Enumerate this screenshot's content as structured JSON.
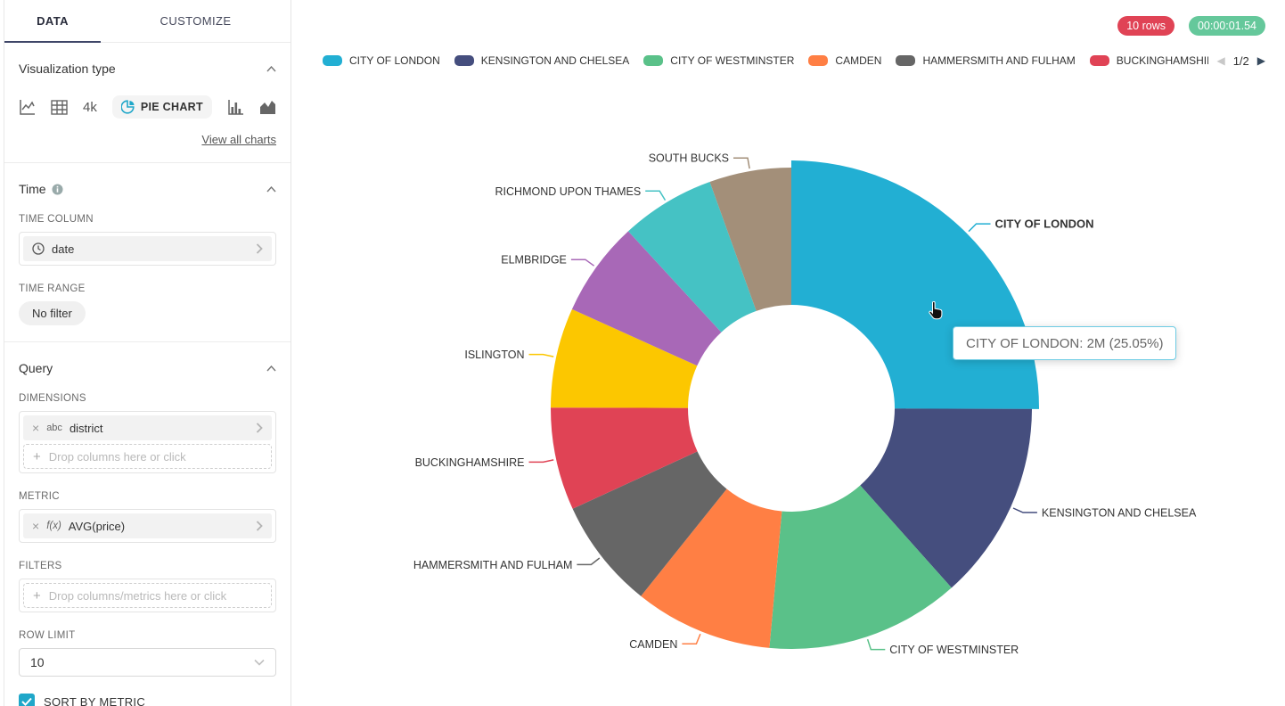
{
  "sidebar": {
    "tabs": [
      {
        "label": "DATA",
        "active": true
      },
      {
        "label": "CUSTOMIZE",
        "active": false
      }
    ],
    "viz": {
      "title": "Visualization type",
      "chart_4k": "4k",
      "selected_label": "PIE CHART",
      "view_all": "View all charts"
    },
    "time": {
      "title": "Time",
      "time_column_label": "TIME COLUMN",
      "time_column_value": "date",
      "time_range_label": "TIME RANGE",
      "time_range_value": "No filter"
    },
    "query": {
      "title": "Query",
      "dimensions_label": "DIMENSIONS",
      "dimension_prefix": "abc",
      "dimension_value": "district",
      "dimensions_placeholder": "Drop columns here or click",
      "metric_label": "METRIC",
      "metric_prefix": "f(x)",
      "metric_value": "AVG(price)",
      "filters_label": "FILTERS",
      "filters_placeholder": "Drop columns/metrics here or click",
      "row_limit_label": "ROW LIMIT",
      "row_limit_value": "10",
      "sort_label": "SORT BY METRIC",
      "sort_by_metric_checked": true
    }
  },
  "statusbar": {
    "rows": "10 rows",
    "rows_color": "#E04355",
    "duration": "00:00:01.54",
    "duration_color": "#65C89B"
  },
  "legend": {
    "items": [
      {
        "label": "CITY OF LONDON",
        "color": "#22AFD3"
      },
      {
        "label": "KENSINGTON AND CHELSEA",
        "color": "#454E7E"
      },
      {
        "label": "CITY OF WESTMINSTER",
        "color": "#5AC189"
      },
      {
        "label": "CAMDEN",
        "color": "#FF7F44"
      },
      {
        "label": "HAMMERSMITH AND FULHAM",
        "color": "#666666"
      },
      {
        "label": "BUCKINGHAMSHIRE",
        "color": "#E04355"
      }
    ],
    "overflow_swatch_color": "#FCC700",
    "pagination": {
      "page": "1/2",
      "prev_enabled": false,
      "next_enabled": true
    }
  },
  "tooltip": {
    "text": "CITY OF LONDON: 2M (25.05%)"
  },
  "chart_data": {
    "type": "pie",
    "subtype": "donut",
    "dimension": "district",
    "metric": "AVG(price)",
    "sort": "metric descending",
    "legend_position": "top",
    "direction": "clockwise",
    "start_angle_deg": 0,
    "hovered_slice": "CITY OF LONDON",
    "hovered_display": "2M (25.05%)",
    "slices": [
      {
        "label": "CITY OF LONDON",
        "percent": 25.05,
        "display_value": "2M",
        "color": "#22AFD3",
        "hovered": true
      },
      {
        "label": "KENSINGTON AND CHELSEA",
        "percent": 13.35,
        "color": "#454E7E"
      },
      {
        "label": "CITY OF WESTMINSTER",
        "percent": 13.05,
        "color": "#5AC189"
      },
      {
        "label": "CAMDEN",
        "percent": 9.3,
        "color": "#FF7F44"
      },
      {
        "label": "HAMMERSMITH AND FULHAM",
        "percent": 7.4,
        "color": "#666666"
      },
      {
        "label": "BUCKINGHAMSHIRE",
        "percent": 6.9,
        "color": "#E04355"
      },
      {
        "label": "ISLINGTON",
        "percent": 6.7,
        "color": "#FCC700"
      },
      {
        "label": "ELMBRIDGE",
        "percent": 6.4,
        "color": "#A868B7"
      },
      {
        "label": "RICHMOND UPON THAMES",
        "percent": 6.35,
        "color": "#45C2C4"
      },
      {
        "label": "SOUTH BUCKS",
        "percent": 5.5,
        "color": "#A38F79"
      }
    ]
  }
}
